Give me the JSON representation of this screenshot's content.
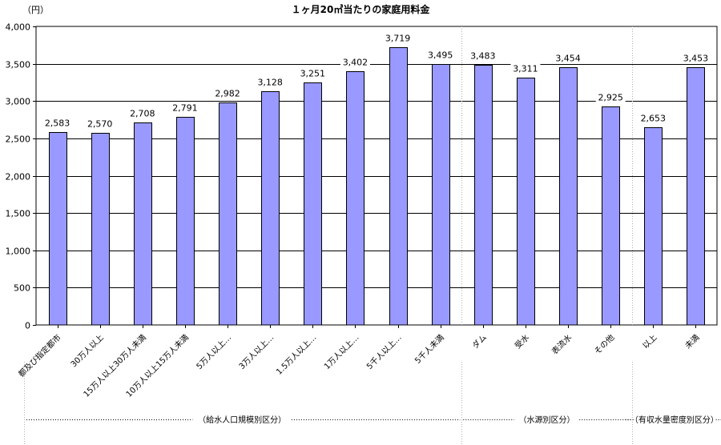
{
  "chart_data": {
    "type": "bar",
    "title": "１ヶ月20㎥当たりの家庭用料金",
    "ylabel": "（円）",
    "xlabel": "",
    "ylim": [
      0,
      4000
    ],
    "ytick_step": 500,
    "grid": true,
    "legend": "none",
    "bar_color": "#9999ff",
    "bar_border": "#000000",
    "categories": [
      "都及び指定都市",
      "30万人以上",
      "15万人以上30万人未満",
      "10万人以上15万人未満",
      "5万人以上…",
      "3万人以上…",
      "1.5万人以上…",
      "1万人以上…",
      "5千人以上…",
      "5千人未満",
      "ダム",
      "受水",
      "表流水",
      "その他",
      "以上",
      "未満"
    ],
    "values": [
      2583,
      2570,
      2708,
      2791,
      2982,
      3128,
      3251,
      3402,
      3719,
      3495,
      3483,
      3311,
      3454,
      2925,
      2653,
      3453
    ],
    "data_labels": [
      "2,583",
      "2,570",
      "2,708",
      "2,791",
      "2,982",
      "3,128",
      "3,251",
      "3,402",
      "3,719",
      "3,495",
      "3,483",
      "3,311",
      "3,454",
      "2,925",
      "2,653",
      "3,453"
    ],
    "groups": [
      {
        "label": "（給水人口規模別区分）",
        "count": 10
      },
      {
        "label": "（水源別区分）",
        "count": 4
      },
      {
        "label": "（有収水量密度別区分）",
        "count": 2
      }
    ]
  }
}
